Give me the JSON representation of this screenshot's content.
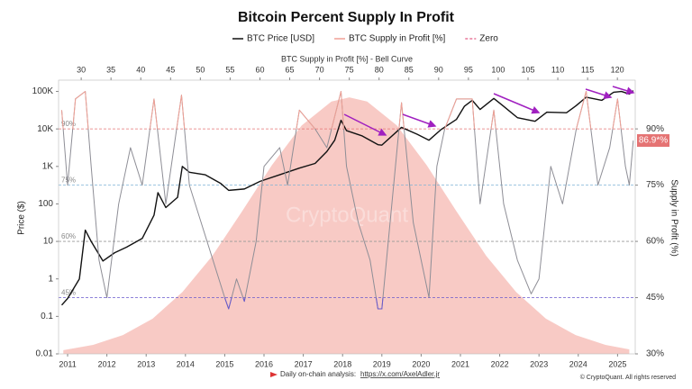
{
  "chart_data": {
    "type": "line",
    "title": "Bitcoin Percent Supply In Profit",
    "ylabel": "Price ($)",
    "y2label": "Supply in Profit (%)",
    "x2label": "BTC Supply in Profit [%] - Bell Curve",
    "legend": [
      "BTC Price [USD]",
      "BTC Supply in Profit [%]",
      "Zero"
    ],
    "legend_colors": [
      "#111111",
      "#f0a095",
      "#e8789a"
    ],
    "xlim": [
      2010.77,
      2025.45
    ],
    "xticks": [
      2011,
      2012,
      2013,
      2014,
      2015,
      2016,
      2017,
      2018,
      2019,
      2020,
      2021,
      2022,
      2023,
      2024,
      2025
    ],
    "ylim": [
      0.01,
      200000
    ],
    "log_y": true,
    "yticks": [
      0.01,
      0.1,
      1,
      10,
      100,
      {
        "value": 1000,
        "label": "1K"
      },
      {
        "value": 10000,
        "label": "10K"
      },
      {
        "value": 100000,
        "label": "100K"
      }
    ],
    "y2lim": [
      30,
      103
    ],
    "y2ticks": [
      {
        "value": 30,
        "label": "30%"
      },
      {
        "value": 45,
        "label": "45%"
      },
      {
        "value": 60,
        "label": "60%"
      },
      {
        "value": 75,
        "label": "75%"
      },
      {
        "value": 90,
        "label": "90%"
      }
    ],
    "x2lim": [
      26.2,
      123
    ],
    "x2ticks": [
      30,
      35,
      40,
      45,
      50,
      55,
      60,
      65,
      70,
      75,
      80,
      85,
      90,
      95,
      100,
      105,
      110,
      115,
      120
    ],
    "reference_lines": [
      {
        "value": 90,
        "label": "90%",
        "color": "#e57373"
      },
      {
        "value": 75,
        "label": "75%",
        "color": "#7fb3d5"
      },
      {
        "value": 60,
        "label": "60%",
        "color": "#999999"
      },
      {
        "value": 45,
        "label": "45%",
        "color": "#6a5acd"
      }
    ],
    "bell_curve": {
      "color": "#f6b8b2",
      "x": [
        27,
        32,
        37,
        42,
        47,
        52,
        57,
        62,
        67,
        72,
        75,
        78,
        83,
        88,
        93,
        98,
        103,
        108,
        113,
        118,
        122
      ],
      "values": [
        31.0,
        32.4,
        35.0,
        39.4,
        46.5,
        56.1,
        68.0,
        80.3,
        90.9,
        97.3,
        98.4,
        97.3,
        90.9,
        80.3,
        68.0,
        56.1,
        46.5,
        39.4,
        35.0,
        32.4,
        31.2
      ]
    },
    "series": [
      {
        "name": "BTC Price [USD]",
        "color": "#111111",
        "axis": "y",
        "x": [
          2010.85,
          2011.0,
          2011.3,
          2011.45,
          2011.6,
          2011.9,
          2012.2,
          2012.5,
          2012.9,
          2013.2,
          2013.3,
          2013.5,
          2013.8,
          2013.92,
          2014.1,
          2014.5,
          2014.9,
          2015.1,
          2015.5,
          2015.9,
          2016.4,
          2016.9,
          2017.3,
          2017.6,
          2017.8,
          2017.96,
          2018.1,
          2018.5,
          2018.9,
          2019.0,
          2019.5,
          2019.9,
          2020.2,
          2020.5,
          2020.9,
          2021.1,
          2021.3,
          2021.5,
          2021.85,
          2022.1,
          2022.45,
          2022.9,
          2023.2,
          2023.7,
          2023.95,
          2024.2,
          2024.6,
          2024.9,
          2025.1,
          2025.3,
          2025.4
        ],
        "values": [
          0.2,
          0.3,
          1,
          20,
          10,
          3,
          5,
          7,
          12,
          50,
          200,
          80,
          150,
          1000,
          700,
          600,
          350,
          230,
          250,
          400,
          600,
          900,
          1200,
          2500,
          5000,
          17000,
          9000,
          6500,
          3800,
          3700,
          11000,
          7200,
          5000,
          9500,
          18000,
          40000,
          58000,
          33000,
          65000,
          40000,
          20000,
          16000,
          28000,
          27000,
          42000,
          70000,
          58000,
          95000,
          100000,
          85000,
          105000
        ]
      },
      {
        "name": "BTC Supply in Profit [%]",
        "color": "#8e8e96",
        "high_color": "#f0a095",
        "low_color": "#6a5acd",
        "axis": "y2",
        "x": [
          2010.85,
          2011.0,
          2011.2,
          2011.45,
          2011.6,
          2011.8,
          2012.0,
          2012.3,
          2012.6,
          2012.9,
          2013.2,
          2013.5,
          2013.9,
          2014.1,
          2014.4,
          2014.7,
          2015.0,
          2015.1,
          2015.3,
          2015.5,
          2015.8,
          2016.0,
          2016.4,
          2016.6,
          2016.9,
          2017.3,
          2017.6,
          2017.96,
          2018.1,
          2018.4,
          2018.7,
          2018.9,
          2019.0,
          2019.3,
          2019.5,
          2019.8,
          2020.2,
          2020.4,
          2020.6,
          2020.9,
          2021.3,
          2021.5,
          2021.85,
          2022.1,
          2022.45,
          2022.8,
          2023.0,
          2023.3,
          2023.6,
          2023.95,
          2024.2,
          2024.5,
          2024.8,
          2025.0,
          2025.2,
          2025.3,
          2025.4
        ],
        "values": [
          95,
          75,
          98,
          100,
          80,
          55,
          45,
          70,
          85,
          75,
          98,
          70,
          99,
          75,
          65,
          55,
          45,
          42,
          50,
          44,
          60,
          80,
          85,
          75,
          95,
          90,
          85,
          100,
          80,
          65,
          55,
          42,
          42,
          75,
          97,
          65,
          45,
          80,
          90,
          98,
          98,
          70,
          95,
          70,
          55,
          46,
          50,
          80,
          70,
          90,
          100,
          75,
          85,
          98,
          80,
          75,
          86.9
        ],
        "value_labels": {
          "56": "86.9*%"
        }
      }
    ],
    "watermark": "CryptoQuant",
    "footer": {
      "text": "Daily on-chain analysis:",
      "link": "https://x.com/AxelAdler.jr",
      "copyright": "© CryptoQuant. All rights reserved"
    }
  }
}
